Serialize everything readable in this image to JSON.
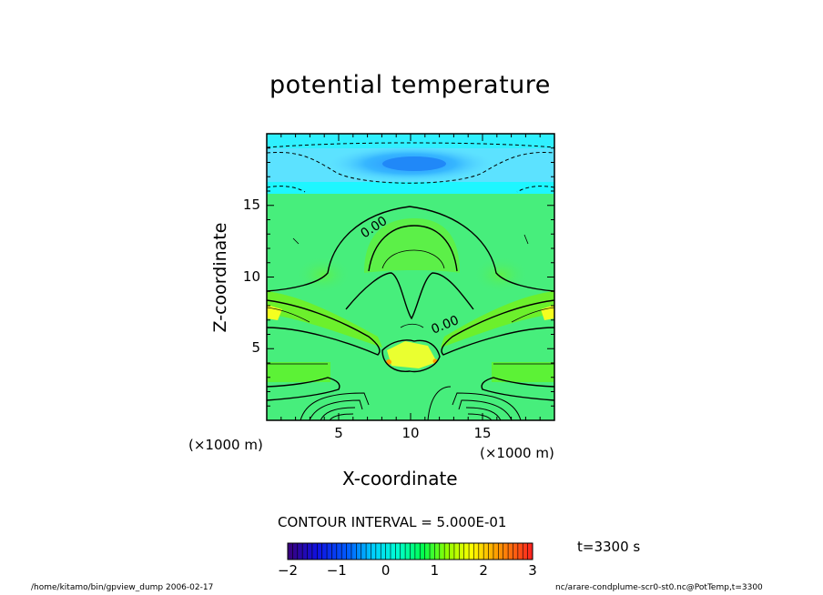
{
  "chart_data": {
    "type": "heatmap",
    "title": "potential temperature",
    "xlabel": "X-coordinate",
    "ylabel": "Z-coordinate",
    "x_unit": "(×1000 m)",
    "y_unit": "(×1000 m)",
    "xlim": [
      0,
      20
    ],
    "ylim": [
      0,
      20
    ],
    "x_ticks": [
      5,
      10,
      15
    ],
    "y_ticks": [
      5,
      10,
      15
    ],
    "contour_interval": "CONTOUR INTERVAL = 5.000E-01",
    "contour_labels": [
      "0.00",
      "0.00"
    ],
    "colorbar": {
      "min": -2,
      "max": 3,
      "ticks": [
        -2,
        -1,
        0,
        1,
        2,
        3
      ],
      "tick_labels": [
        "−2",
        "−1",
        "0",
        "1",
        "2",
        "3"
      ],
      "colors": [
        "#4b0082",
        "#0000ff",
        "#00c8ff",
        "#00ffff",
        "#00ff66",
        "#66ff00",
        "#ffff00",
        "#ff8800",
        "#ff0000"
      ]
    },
    "time": "t=3300 s",
    "region_levels": [
      {
        "z": [
          19.0,
          20.0
        ],
        "value": -0.3
      },
      {
        "z": [
          18.0,
          19.0
        ],
        "value": -1.2
      },
      {
        "z": [
          16.0,
          18.0
        ],
        "value": -0.6
      },
      {
        "z": [
          0.0,
          16.0
        ],
        "value": 0.4
      }
    ]
  },
  "footer": {
    "left": "/home/kitamo/bin/gpview_dump  2006-02-17",
    "right": "nc/arare-condplume-scr0-st0.nc@PotTemp,t=3300"
  },
  "colors": {
    "background": "#ffffff",
    "axis": "#000000",
    "contour": "#000000"
  }
}
